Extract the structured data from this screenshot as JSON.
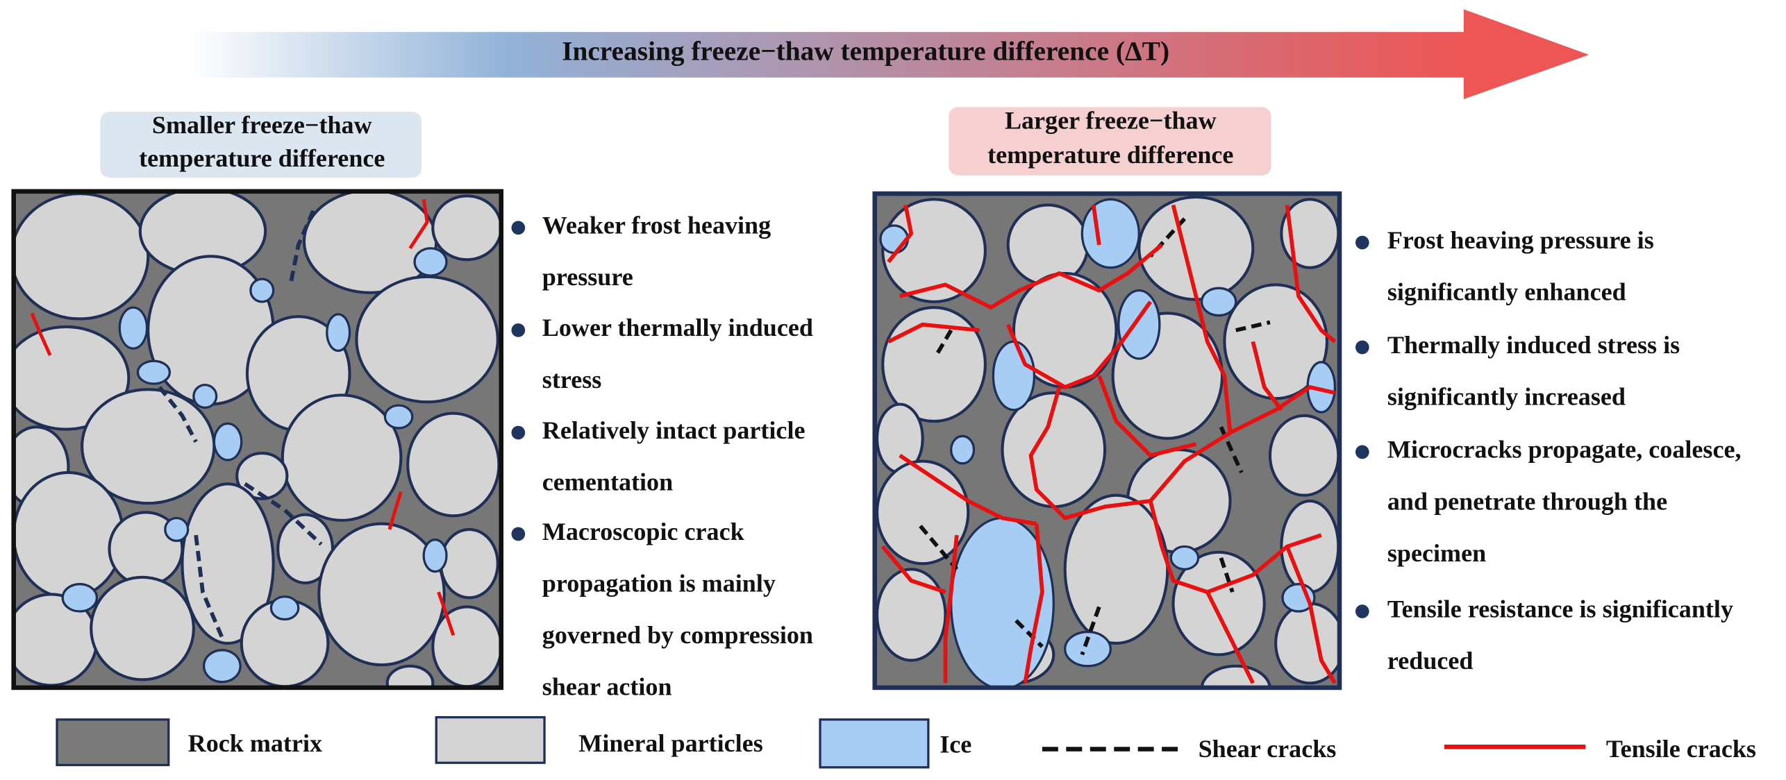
{
  "header": {
    "title": "Increasing freeze−thaw temperature difference (ΔT)"
  },
  "left_panel": {
    "label": [
      "Smaller freeze−thaw",
      "temperature difference"
    ],
    "bullets": [
      [
        "Weaker frost heaving",
        "pressure"
      ],
      [
        "Lower thermally induced",
        "stress"
      ],
      [
        "Relatively intact particle",
        "cementation"
      ],
      [
        "Macroscopic crack",
        "propagation is mainly",
        "governed by compression",
        "shear action"
      ]
    ]
  },
  "right_panel": {
    "label": [
      "Larger freeze−thaw",
      "temperature difference"
    ],
    "bullets": [
      [
        "Frost heaving pressure is",
        "significantly enhanced"
      ],
      [
        "Thermally induced stress is",
        "significantly increased"
      ],
      [
        "Microcracks propagate, coalesce,",
        "and penetrate through the",
        "specimen"
      ],
      [
        "Tensile resistance is significantly",
        "reduced"
      ]
    ]
  },
  "legend": [
    "Rock matrix",
    "Mineral particles",
    "Ice",
    "Shear cracks",
    "Tensile cracks"
  ]
}
